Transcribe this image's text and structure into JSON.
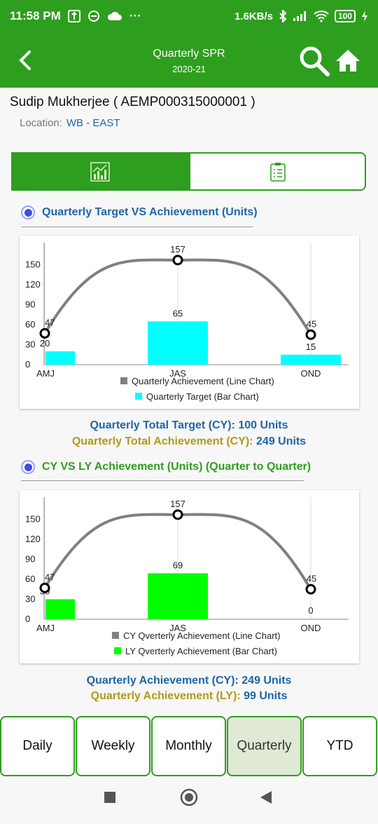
{
  "status_bar": {
    "time": "11:58 PM",
    "dots": "···",
    "speed": "1.6KB/s",
    "battery": "100"
  },
  "app_bar": {
    "title": "Quarterly  SPR",
    "subtitle": "2020-21"
  },
  "user": {
    "name": "Sudip Mukherjee ( AEMP000315000001 )",
    "location_label": "Location:",
    "location_value": "WB - EAST"
  },
  "colors": {
    "primary_green": "#2e9e1e",
    "cyan_bar": "#00ffff",
    "green_bar": "#00ff00",
    "line_gray": "#808080",
    "title_blue": "#1f66a6",
    "title_olive": "#b09a1a"
  },
  "section1": {
    "title": "Quarterly Target VS Achievement (Units)",
    "summary_target_label": "Quarterly Total Target (CY):",
    "summary_target_value": "100 Units",
    "summary_ach_label": "Quarterly Total Achievement (CY):",
    "summary_ach_value": "249 Units"
  },
  "section2": {
    "title": "CY VS LY Achievement (Units) (Quarter to Quarter)",
    "summary_cy_label": "Quarterly Achievement (CY):",
    "summary_cy_value": "249 Units",
    "summary_ly_label": "Quarterly Achievement (LY):",
    "summary_ly_value": "99 Units"
  },
  "chart_data": [
    {
      "type": "bar",
      "categories": [
        "AMJ",
        "JAS",
        "OND"
      ],
      "series": [
        {
          "name": "Quarterly Achievement (Line Chart)",
          "kind": "line",
          "color": "#808080",
          "values": [
            47,
            157,
            45
          ]
        },
        {
          "name": "Quarterly Target (Bar Chart)",
          "kind": "bar",
          "color": "#00ffff",
          "values": [
            20,
            65,
            15
          ]
        }
      ],
      "yticks": [
        "0",
        "30",
        "60",
        "90",
        "120",
        "150"
      ],
      "ylim": [
        0,
        170
      ],
      "legend": "bottom-center"
    },
    {
      "type": "bar",
      "categories": [
        "AMJ",
        "JAS",
        "OND"
      ],
      "series": [
        {
          "name": "CY Qverterly Achievement  (Line Chart)",
          "kind": "line",
          "color": "#808080",
          "values": [
            47,
            157,
            45
          ]
        },
        {
          "name": "LY Qverterly Achievement  (Bar Chart)",
          "kind": "bar",
          "color": "#00ff00",
          "values": [
            30,
            69,
            0
          ]
        }
      ],
      "yticks": [
        "0",
        "30",
        "60",
        "90",
        "120",
        "150"
      ],
      "ylim": [
        0,
        170
      ],
      "legend": "bottom-center"
    }
  ],
  "bottom_tabs": [
    "Daily",
    "Weekly",
    "Monthly",
    "Quarterly",
    "YTD"
  ],
  "active_tab": "Quarterly"
}
